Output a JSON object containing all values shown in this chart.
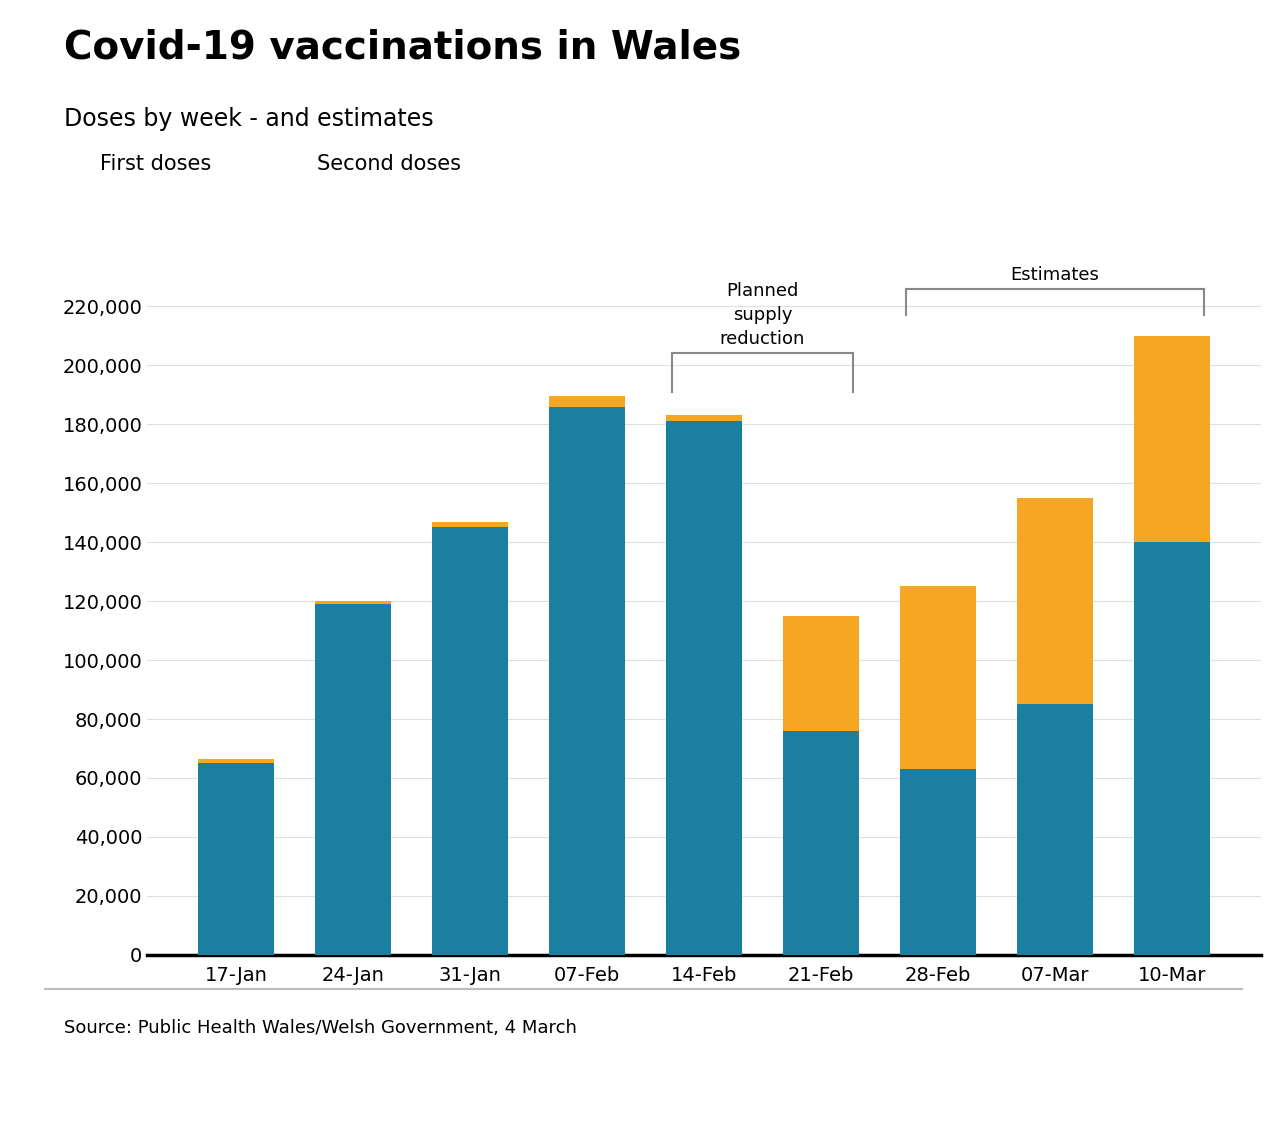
{
  "title": "Covid-19 vaccinations in Wales",
  "subtitle": "Doses by week - and estimates",
  "categories": [
    "17-Jan",
    "24-Jan",
    "31-Jan",
    "07-Feb",
    "14-Feb",
    "21-Feb",
    "28-Feb",
    "07-Mar",
    "10-Mar"
  ],
  "first_doses": [
    65000,
    119000,
    145000,
    186000,
    181000,
    76000,
    63000,
    85000,
    140000
  ],
  "second_doses": [
    1500,
    1000,
    2000,
    3500,
    2000,
    39000,
    62000,
    70000,
    70000
  ],
  "first_color": "#1a7fa0",
  "second_color": "#f5a623",
  "ylim": [
    0,
    230000
  ],
  "yticks": [
    0,
    20000,
    40000,
    60000,
    80000,
    100000,
    120000,
    140000,
    160000,
    180000,
    200000,
    220000
  ],
  "source_text": "Source: Public Health Wales/Welsh Government, 4 March",
  "legend_first": "First doses",
  "legend_second": "Second doses",
  "bg_color": "#ffffff"
}
